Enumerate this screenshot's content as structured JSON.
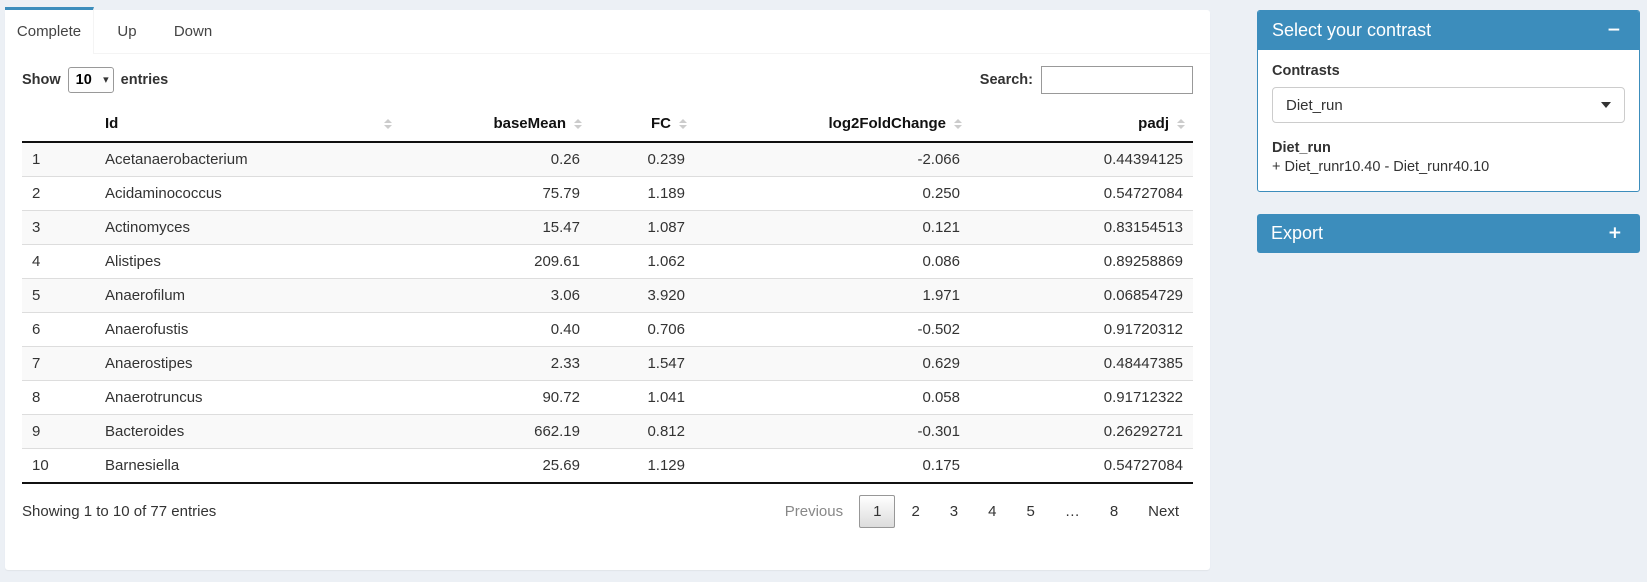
{
  "tabs": [
    {
      "label": "Complete",
      "active": true
    },
    {
      "label": "Up",
      "active": false
    },
    {
      "label": "Down",
      "active": false
    }
  ],
  "controls": {
    "show_label": "Show",
    "page_length": "10",
    "entries_label": "entries",
    "search_label": "Search:",
    "search_value": ""
  },
  "table": {
    "columns": {
      "id": "Id",
      "baseMean": "baseMean",
      "fc": "FC",
      "log2fc": "log2FoldChange",
      "padj": "padj"
    },
    "rows": [
      {
        "index": "1",
        "id": "Acetanaerobacterium",
        "baseMean": "0.26",
        "fc": "0.239",
        "log2fc": "-2.066",
        "padj": "0.44394125"
      },
      {
        "index": "2",
        "id": "Acidaminococcus",
        "baseMean": "75.79",
        "fc": "1.189",
        "log2fc": "0.250",
        "padj": "0.54727084"
      },
      {
        "index": "3",
        "id": "Actinomyces",
        "baseMean": "15.47",
        "fc": "1.087",
        "log2fc": "0.121",
        "padj": "0.83154513"
      },
      {
        "index": "4",
        "id": "Alistipes",
        "baseMean": "209.61",
        "fc": "1.062",
        "log2fc": "0.086",
        "padj": "0.89258869"
      },
      {
        "index": "5",
        "id": "Anaerofilum",
        "baseMean": "3.06",
        "fc": "3.920",
        "log2fc": "1.971",
        "padj": "0.06854729"
      },
      {
        "index": "6",
        "id": "Anaerofustis",
        "baseMean": "0.40",
        "fc": "0.706",
        "log2fc": "-0.502",
        "padj": "0.91720312"
      },
      {
        "index": "7",
        "id": "Anaerostipes",
        "baseMean": "2.33",
        "fc": "1.547",
        "log2fc": "0.629",
        "padj": "0.48447385"
      },
      {
        "index": "8",
        "id": "Anaerotruncus",
        "baseMean": "90.72",
        "fc": "1.041",
        "log2fc": "0.058",
        "padj": "0.91712322"
      },
      {
        "index": "9",
        "id": "Bacteroides",
        "baseMean": "662.19",
        "fc": "0.812",
        "log2fc": "-0.301",
        "padj": "0.26292721"
      },
      {
        "index": "10",
        "id": "Barnesiella",
        "baseMean": "25.69",
        "fc": "1.129",
        "log2fc": "0.175",
        "padj": "0.54727084"
      }
    ]
  },
  "footer": {
    "info": "Showing 1 to 10 of 77 entries",
    "pagination": {
      "previous": "Previous",
      "pages": [
        "1",
        "2",
        "3",
        "4",
        "5",
        "…",
        "8"
      ],
      "current_page": "1",
      "next": "Next"
    }
  },
  "contrast_panel": {
    "title": "Select your contrast",
    "collapse_icon": "−",
    "contrasts_label": "Contrasts",
    "selected_contrast": "Diet_run",
    "contrast_name": "Diet_run",
    "contrast_formula": "+ Diet_runr10.40 - Diet_runr40.10"
  },
  "export_panel": {
    "title": "Export",
    "expand_icon": "+"
  },
  "colors": {
    "accent": "#3c8dbc",
    "page_bg": "#ecf0f5"
  }
}
